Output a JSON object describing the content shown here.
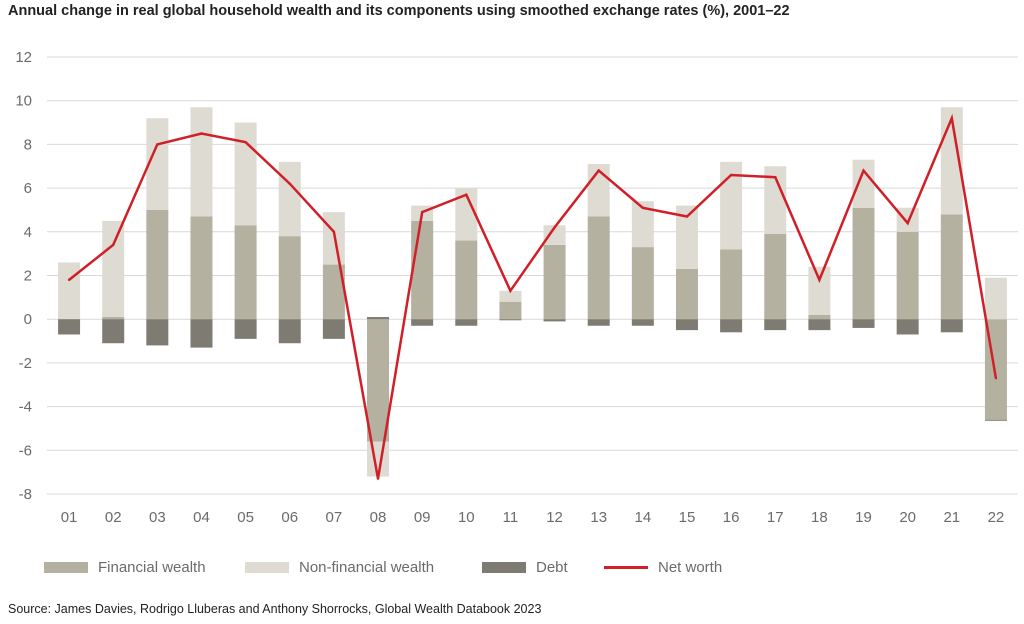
{
  "title": "Annual change in real global household wealth and its components using smoothed exchange rates (%), 2001–22",
  "source": "Source: James Davies, Rodrigo Lluberas and Anthony Shorrocks, Global Wealth Databook 2023",
  "colors": {
    "financial": "#b5b1a0",
    "nonfinancial": "#dedbd3",
    "debt": "#7e7c72",
    "net": "#d11f27",
    "grid": "#d9d9d9",
    "tick": "#6b6b6b"
  },
  "legend": {
    "financial": "Financial wealth",
    "nonfinancial": "Non-financial wealth",
    "debt": "Debt",
    "net": "Net worth"
  },
  "chart_data": {
    "type": "bar",
    "stacked": true,
    "categories": [
      "01",
      "02",
      "03",
      "04",
      "05",
      "06",
      "07",
      "08",
      "09",
      "10",
      "11",
      "12",
      "13",
      "14",
      "15",
      "16",
      "17",
      "18",
      "19",
      "20",
      "21",
      "22"
    ],
    "ylim": [
      -8,
      12
    ],
    "yticks": [
      -8,
      -6,
      -4,
      -2,
      0,
      2,
      4,
      6,
      8,
      10,
      12
    ],
    "grid": true,
    "legend_position": "bottom",
    "series": [
      {
        "name": "Financial wealth",
        "kind": "bar",
        "values": [
          0,
          0.1,
          5.0,
          4.7,
          4.3,
          3.8,
          2.5,
          -5.6,
          4.5,
          3.6,
          0.8,
          3.4,
          4.7,
          3.3,
          2.3,
          3.2,
          3.9,
          0.2,
          5.1,
          4.0,
          4.8,
          -4.6
        ]
      },
      {
        "name": "Non-financial wealth",
        "kind": "bar",
        "values": [
          2.6,
          4.4,
          4.2,
          5.0,
          4.7,
          3.4,
          2.4,
          -1.6,
          0.7,
          2.4,
          0.5,
          0.9,
          2.4,
          2.1,
          2.9,
          4.0,
          3.1,
          2.2,
          2.2,
          1.1,
          4.9,
          1.9
        ]
      },
      {
        "name": "Debt",
        "kind": "bar",
        "values": [
          -0.7,
          -1.1,
          -1.2,
          -1.3,
          -0.9,
          -1.1,
          -0.9,
          0.1,
          -0.3,
          -0.3,
          -0.05,
          -0.1,
          -0.3,
          -0.3,
          -0.5,
          -0.6,
          -0.5,
          -0.5,
          -0.4,
          -0.7,
          -0.6,
          -0.05
        ]
      },
      {
        "name": "Net worth",
        "kind": "line",
        "values": [
          1.8,
          3.4,
          8.0,
          8.5,
          8.1,
          6.2,
          4.0,
          -7.3,
          4.9,
          5.7,
          1.3,
          4.2,
          6.8,
          5.1,
          4.7,
          6.6,
          6.5,
          1.8,
          6.8,
          4.4,
          9.2,
          -2.7
        ]
      }
    ]
  }
}
